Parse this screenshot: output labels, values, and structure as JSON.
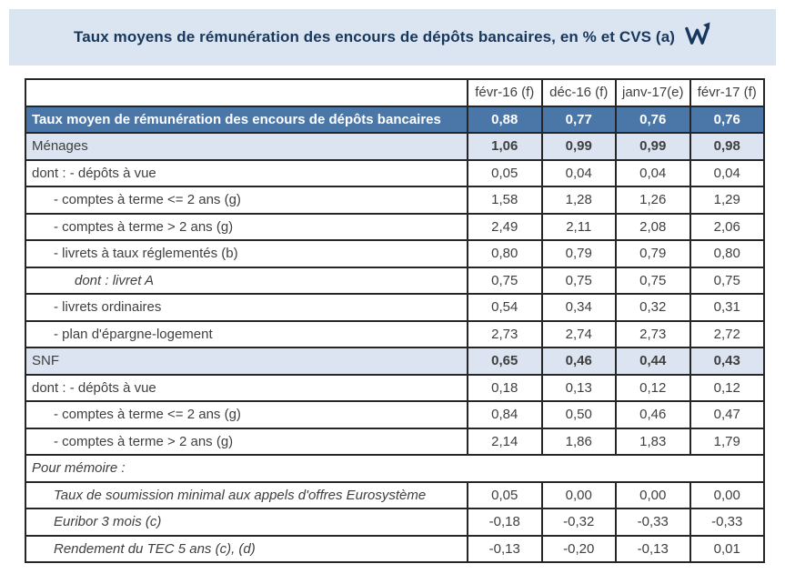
{
  "banner": {
    "title": "Taux moyens de rémunération des encours de dépôts bancaires, en % et CVS (a)",
    "icon": "webstat-w-arrow-icon"
  },
  "colors": {
    "banner_bg": "#dbe5f1",
    "title_text": "#17375d",
    "total_row_bg": "#4a77a8",
    "group_row_bg": "#dbe4f0",
    "border": "#262626",
    "cell_text": "#3f3f3f"
  },
  "chart_data": {
    "type": "table",
    "title": "Taux moyens de rémunération des encours de dépôts bancaires, en % et CVS (a)",
    "columns": [
      "févr-16 (f)",
      "déc-16 (f)",
      "janv-17(e)",
      "févr-17 (f)"
    ],
    "rows": [
      {
        "label": "Taux moyen de rémunération des encours de dépôts bancaires",
        "values": [
          "0,88",
          "0,77",
          "0,76",
          "0,76"
        ],
        "style": "total",
        "indent": 0,
        "italic": false
      },
      {
        "label": "Ménages",
        "values": [
          "1,06",
          "0,99",
          "0,99",
          "0,98"
        ],
        "style": "group",
        "indent": 0,
        "italic": false
      },
      {
        "label": "dont : - dépôts à vue",
        "values": [
          "0,05",
          "0,04",
          "0,04",
          "0,04"
        ],
        "style": "plain",
        "indent": 0,
        "italic": false
      },
      {
        "label": "- comptes à terme <= 2 ans (g)",
        "values": [
          "1,58",
          "1,28",
          "1,26",
          "1,29"
        ],
        "style": "plain",
        "indent": 1,
        "italic": false
      },
      {
        "label": "- comptes à terme > 2 ans (g)",
        "values": [
          "2,49",
          "2,11",
          "2,08",
          "2,06"
        ],
        "style": "plain",
        "indent": 1,
        "italic": false
      },
      {
        "label": "- livrets à taux réglementés (b)",
        "values": [
          "0,80",
          "0,79",
          "0,79",
          "0,80"
        ],
        "style": "plain",
        "indent": 1,
        "italic": false
      },
      {
        "label": "dont : livret A",
        "values": [
          "0,75",
          "0,75",
          "0,75",
          "0,75"
        ],
        "style": "plain",
        "indent": 2,
        "italic": true
      },
      {
        "label": "- livrets ordinaires",
        "values": [
          "0,54",
          "0,34",
          "0,32",
          "0,31"
        ],
        "style": "plain",
        "indent": 1,
        "italic": false
      },
      {
        "label": "- plan d'épargne-logement",
        "values": [
          "2,73",
          "2,74",
          "2,73",
          "2,72"
        ],
        "style": "plain",
        "indent": 1,
        "italic": false
      },
      {
        "label": "SNF",
        "values": [
          "0,65",
          "0,46",
          "0,44",
          "0,43"
        ],
        "style": "group",
        "indent": 0,
        "italic": false
      },
      {
        "label": "dont : - dépôts à vue",
        "values": [
          "0,18",
          "0,13",
          "0,12",
          "0,12"
        ],
        "style": "plain",
        "indent": 0,
        "italic": false
      },
      {
        "label": "- comptes à terme <= 2 ans (g)",
        "values": [
          "0,84",
          "0,50",
          "0,46",
          "0,47"
        ],
        "style": "plain",
        "indent": 1,
        "italic": false
      },
      {
        "label": "- comptes à terme > 2 ans (g)",
        "values": [
          "2,14",
          "1,86",
          "1,83",
          "1,79"
        ],
        "style": "plain",
        "indent": 1,
        "italic": false
      },
      {
        "label": "Pour mémoire :",
        "values": [],
        "style": "plain",
        "indent": 0,
        "italic": true,
        "fullwidth": true
      },
      {
        "label": "Taux de soumission minimal aux appels d'offres Eurosystème",
        "values": [
          "0,05",
          "0,00",
          "0,00",
          "0,00"
        ],
        "style": "plain",
        "indent": 1,
        "italic": true
      },
      {
        "label": "Euribor 3 mois (c)",
        "values": [
          "-0,18",
          "-0,32",
          "-0,33",
          "-0,33"
        ],
        "style": "plain",
        "indent": 1,
        "italic": true
      },
      {
        "label": "Rendement du TEC 5 ans (c), (d)",
        "values": [
          "-0,13",
          "-0,20",
          "-0,13",
          "0,01"
        ],
        "style": "plain",
        "indent": 1,
        "italic": true
      }
    ]
  }
}
